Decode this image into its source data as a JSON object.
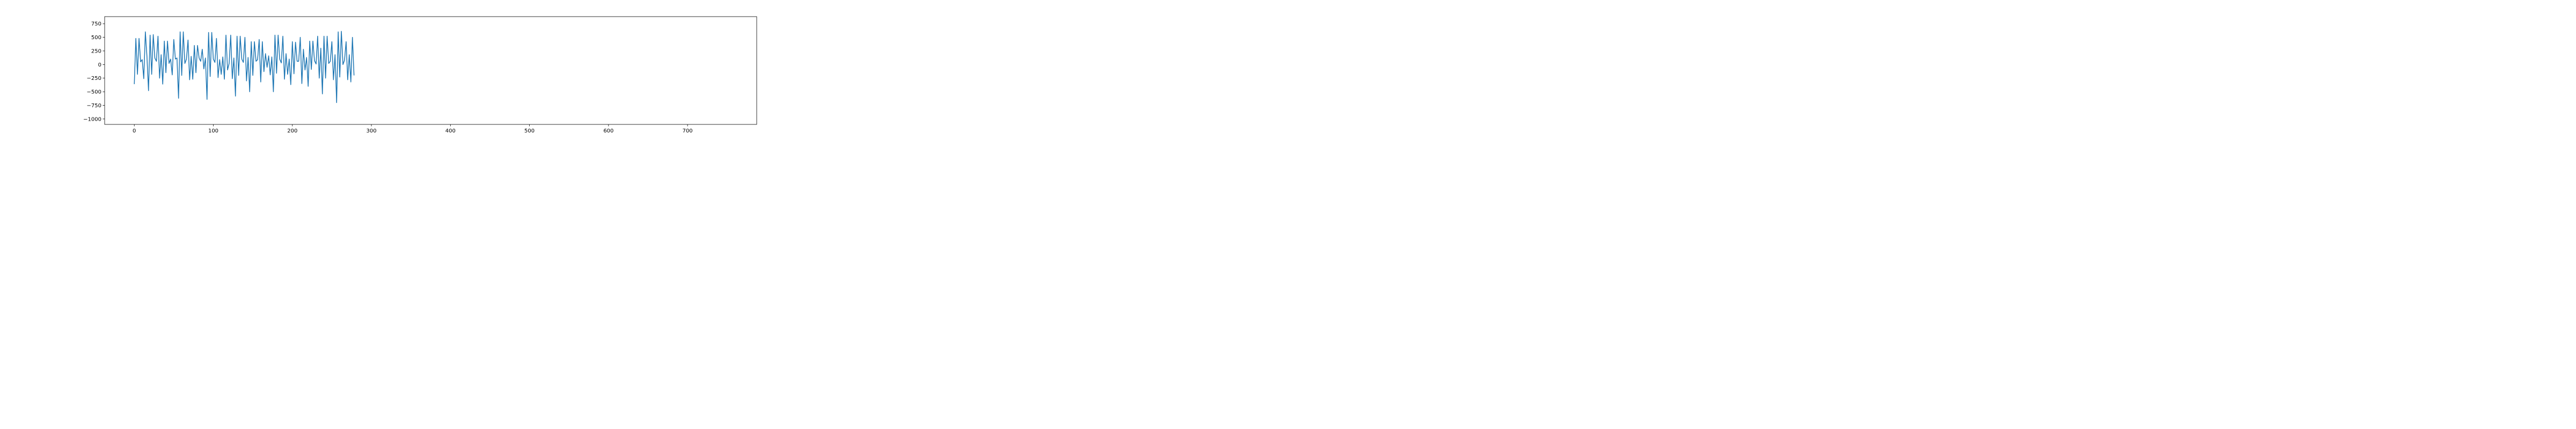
{
  "chart_data": {
    "type": "line",
    "xlim": [
      -37.5,
      787.5
    ],
    "ylim": [
      -1100,
      880
    ],
    "xticks": [
      0,
      100,
      200,
      300,
      400,
      500,
      600,
      700
    ],
    "yticks": [
      -1000,
      -750,
      -500,
      -250,
      0,
      250,
      500,
      750
    ],
    "grid": false,
    "series": [
      {
        "color": "#1f77b4",
        "points": [
          [
            0,
            -360
          ],
          [
            2,
            480
          ],
          [
            4,
            -180
          ],
          [
            6,
            480
          ],
          [
            8,
            50
          ],
          [
            10,
            90
          ],
          [
            12,
            -260
          ],
          [
            14,
            600
          ],
          [
            16,
            150
          ],
          [
            18,
            -480
          ],
          [
            20,
            540
          ],
          [
            22,
            -180
          ],
          [
            24,
            550
          ],
          [
            26,
            120
          ],
          [
            28,
            60
          ],
          [
            30,
            520
          ],
          [
            32,
            -250
          ],
          [
            34,
            180
          ],
          [
            36,
            -360
          ],
          [
            38,
            430
          ],
          [
            40,
            -150
          ],
          [
            42,
            430
          ],
          [
            44,
            20
          ],
          [
            46,
            100
          ],
          [
            48,
            -190
          ],
          [
            50,
            460
          ],
          [
            52,
            100
          ],
          [
            54,
            120
          ],
          [
            56,
            -620
          ],
          [
            58,
            600
          ],
          [
            60,
            -200
          ],
          [
            62,
            600
          ],
          [
            64,
            20
          ],
          [
            66,
            100
          ],
          [
            68,
            450
          ],
          [
            70,
            -280
          ],
          [
            72,
            150
          ],
          [
            74,
            -270
          ],
          [
            76,
            350
          ],
          [
            78,
            -150
          ],
          [
            80,
            350
          ],
          [
            82,
            120
          ],
          [
            84,
            60
          ],
          [
            86,
            280
          ],
          [
            88,
            -80
          ],
          [
            90,
            120
          ],
          [
            92,
            -640
          ],
          [
            94,
            590
          ],
          [
            96,
            -220
          ],
          [
            98,
            590
          ],
          [
            100,
            100
          ],
          [
            102,
            40
          ],
          [
            104,
            480
          ],
          [
            106,
            -240
          ],
          [
            108,
            90
          ],
          [
            110,
            -180
          ],
          [
            112,
            140
          ],
          [
            114,
            -270
          ],
          [
            116,
            540
          ],
          [
            118,
            -100
          ],
          [
            120,
            20
          ],
          [
            122,
            540
          ],
          [
            124,
            -260
          ],
          [
            126,
            120
          ],
          [
            128,
            -580
          ],
          [
            130,
            520
          ],
          [
            132,
            -200
          ],
          [
            134,
            520
          ],
          [
            136,
            100
          ],
          [
            138,
            40
          ],
          [
            140,
            500
          ],
          [
            142,
            -300
          ],
          [
            144,
            130
          ],
          [
            146,
            -500
          ],
          [
            148,
            420
          ],
          [
            150,
            -200
          ],
          [
            152,
            420
          ],
          [
            154,
            60
          ],
          [
            156,
            90
          ],
          [
            158,
            460
          ],
          [
            160,
            -320
          ],
          [
            162,
            420
          ],
          [
            164,
            -130
          ],
          [
            166,
            200
          ],
          [
            168,
            -50
          ],
          [
            170,
            160
          ],
          [
            172,
            -190
          ],
          [
            174,
            140
          ],
          [
            176,
            -500
          ],
          [
            178,
            540
          ],
          [
            180,
            -160
          ],
          [
            182,
            540
          ],
          [
            184,
            100
          ],
          [
            186,
            30
          ],
          [
            188,
            520
          ],
          [
            190,
            -270
          ],
          [
            192,
            200
          ],
          [
            194,
            -180
          ],
          [
            196,
            100
          ],
          [
            198,
            -370
          ],
          [
            200,
            420
          ],
          [
            202,
            -170
          ],
          [
            204,
            410
          ],
          [
            206,
            60
          ],
          [
            208,
            60
          ],
          [
            210,
            500
          ],
          [
            212,
            -350
          ],
          [
            214,
            280
          ],
          [
            216,
            -100
          ],
          [
            218,
            130
          ],
          [
            220,
            -400
          ],
          [
            222,
            430
          ],
          [
            224,
            -90
          ],
          [
            226,
            430
          ],
          [
            228,
            70
          ],
          [
            230,
            10
          ],
          [
            232,
            520
          ],
          [
            234,
            -250
          ],
          [
            236,
            300
          ],
          [
            238,
            -540
          ],
          [
            240,
            520
          ],
          [
            242,
            -250
          ],
          [
            244,
            520
          ],
          [
            246,
            20
          ],
          [
            248,
            60
          ],
          [
            250,
            420
          ],
          [
            252,
            -280
          ],
          [
            254,
            180
          ],
          [
            256,
            -700
          ],
          [
            258,
            600
          ],
          [
            260,
            -230
          ],
          [
            262,
            610
          ],
          [
            264,
            0
          ],
          [
            266,
            80
          ],
          [
            268,
            420
          ],
          [
            270,
            -280
          ],
          [
            272,
            180
          ],
          [
            274,
            -320
          ],
          [
            276,
            500
          ],
          [
            278,
            -200
          ]
        ]
      }
    ]
  }
}
